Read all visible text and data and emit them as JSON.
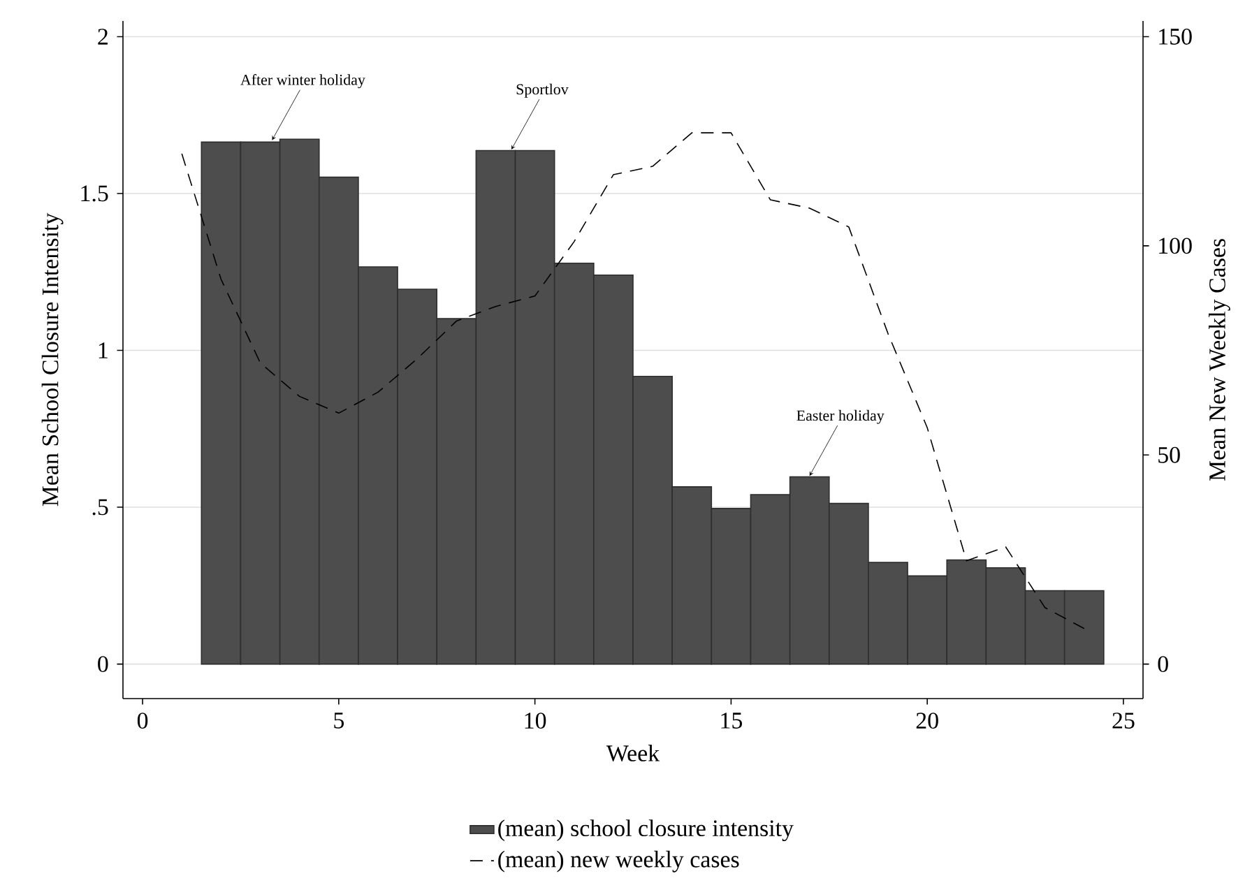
{
  "chart_data": {
    "type": "bar",
    "xlabel": "Week",
    "ylabel": "Mean School Closure Intensity",
    "y2label": "Mean New Weekly Cases",
    "series": [
      {
        "name": "(mean) school closure intensity",
        "color": "#4d4d4d",
        "x": [
          2,
          3,
          4,
          5,
          6,
          7,
          8,
          9,
          10,
          11,
          12,
          13,
          14,
          15,
          16,
          17,
          18,
          19,
          20,
          21,
          22,
          23,
          24
        ],
        "values": [
          1.664,
          1.664,
          1.673,
          1.552,
          1.266,
          1.195,
          1.101,
          1.637,
          1.637,
          1.278,
          1.24,
          0.917,
          0.565,
          0.496,
          0.54,
          0.597,
          0.512,
          0.324,
          0.281,
          0.332,
          0.307,
          0.234,
          0.234
        ]
      },
      {
        "name": "(mean) new weekly cases",
        "type": "line",
        "axis": "y2",
        "color": "#000000",
        "line_style": "dashed",
        "x": [
          1,
          2,
          3,
          4,
          5,
          6,
          7,
          8,
          9,
          10,
          11,
          12,
          13,
          14,
          15,
          16,
          17,
          18,
          19,
          20,
          21,
          22,
          23,
          24
        ],
        "values": [
          122,
          92,
          72,
          64,
          60,
          65,
          73,
          82,
          85.5,
          88,
          101,
          117,
          119,
          127,
          127,
          111,
          109,
          104.5,
          79,
          56.5,
          24.7,
          28,
          13.5,
          8.5
        ]
      }
    ],
    "xlim": [
      -0.5,
      25.5
    ],
    "xticks": [
      0,
      5,
      10,
      15,
      20,
      25
    ],
    "ylim": [
      -0.11,
      2.05
    ],
    "yticks": [
      0,
      {
        "value": 0.5,
        "label": ".5"
      },
      1,
      1.5,
      2
    ],
    "y2lim": [
      -8.25,
      153.75
    ],
    "y2ticks": [
      0,
      50,
      100,
      150
    ],
    "grid": "y",
    "legend": "bottom",
    "annotations": [
      {
        "text": "After winter holiday",
        "x": 3.3,
        "y": 1.67
      },
      {
        "text": "Sportlov",
        "x": 9.4,
        "y": 1.64
      },
      {
        "text": "Easter holiday",
        "x": 17,
        "y": 0.6
      }
    ]
  }
}
